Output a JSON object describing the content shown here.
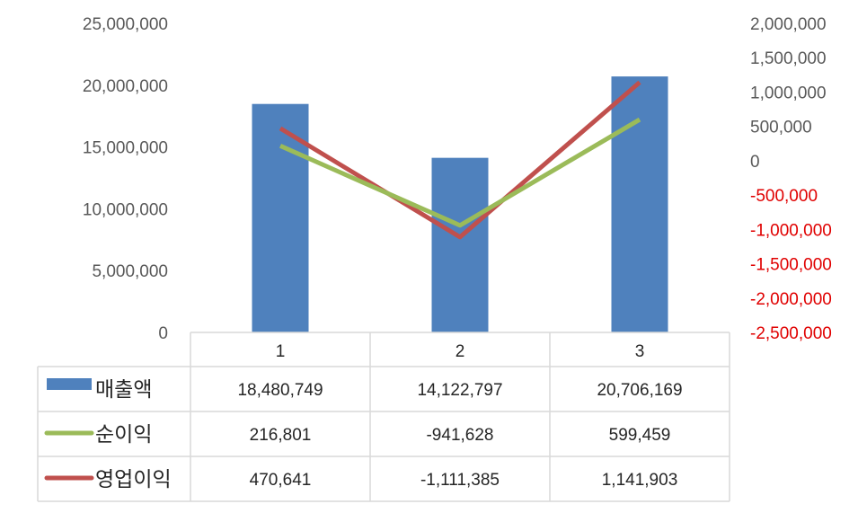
{
  "chart_data": {
    "type": "bar",
    "categories": [
      "1",
      "2",
      "3"
    ],
    "left_axis": {
      "ylim": [
        0,
        25000000
      ],
      "ticks": [
        "25,000,000",
        "20,000,000",
        "15,000,000",
        "10,000,000",
        "5,000,000",
        "0"
      ]
    },
    "right_axis": {
      "ylim": [
        -2500000,
        2000000
      ],
      "ticks": [
        "2,000,000",
        "1,500,000",
        "1,000,000",
        "500,000",
        "0",
        "-500,000",
        "-1,000,000",
        "-1,500,000",
        "-2,000,000",
        "-2,500,000"
      ]
    },
    "series": [
      {
        "name": "매출액",
        "type": "bar",
        "axis": "left",
        "color": "#4f81bd",
        "values": [
          18480749,
          14122797,
          20706169
        ],
        "labels": [
          "18,480,749",
          "14,122,797",
          "20,706,169"
        ]
      },
      {
        "name": "순이익",
        "type": "line",
        "axis": "right",
        "color": "#9bbb59",
        "values": [
          216801,
          -941628,
          599459
        ],
        "labels": [
          "216,801",
          "-941,628",
          "599,459"
        ]
      },
      {
        "name": "영업이익",
        "type": "line",
        "axis": "right",
        "color": "#c0504d",
        "values": [
          470641,
          -1111385,
          1141903
        ],
        "labels": [
          "470,641",
          "-1,111,385",
          "1,141,903"
        ]
      }
    ],
    "grid": false,
    "legend": "data-table"
  }
}
